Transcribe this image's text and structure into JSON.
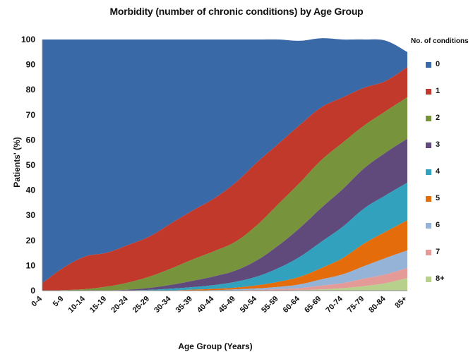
{
  "chart_data": {
    "type": "area",
    "title": "Morbidity (number of chronic conditions) by Age Group",
    "xlabel": "Age Group (Years)",
    "ylabel": "Patients' (%)",
    "ylim": [
      0,
      100
    ],
    "yticks": [
      0,
      10,
      20,
      30,
      40,
      50,
      60,
      70,
      80,
      90,
      100
    ],
    "legend_title": "No. of conditions",
    "legend_position": "right",
    "grid": false,
    "categories": [
      "0-4",
      "5-9",
      "10-14",
      "15-19",
      "20-24",
      "25-29",
      "30-34",
      "35-39",
      "40-44",
      "45-49",
      "50-54",
      "55-59",
      "60-64",
      "65-69",
      "70-74",
      "75-79",
      "80-84",
      "85+"
    ],
    "series": [
      {
        "name": "8+",
        "color": "#B7D08C",
        "values": [
          0,
          0,
          0,
          0,
          0,
          0,
          0,
          0,
          0,
          0,
          0,
          0.1,
          0.2,
          0.5,
          1,
          1.8,
          3,
          5
        ]
      },
      {
        "name": "7",
        "color": "#E49A96",
        "values": [
          0,
          0,
          0,
          0,
          0,
          0,
          0,
          0,
          0,
          0.1,
          0.3,
          0.5,
          0.8,
          1.5,
          2,
          3,
          3.5,
          4
        ]
      },
      {
        "name": "6",
        "color": "#95B3D7",
        "values": [
          0,
          0,
          0,
          0,
          0,
          0,
          0,
          0.1,
          0.2,
          0.4,
          0.6,
          0.9,
          1.5,
          2.5,
          3.5,
          5,
          6.5,
          7
        ]
      },
      {
        "name": "5",
        "color": "#E46C0A",
        "values": [
          0,
          0,
          0,
          0,
          0,
          0,
          0.1,
          0.3,
          0.5,
          0.7,
          1.2,
          2,
          3,
          4.5,
          6.5,
          9,
          10.5,
          12
        ]
      },
      {
        "name": "4",
        "color": "#31A1BD",
        "values": [
          0,
          0,
          0,
          0,
          0.1,
          0.3,
          0.7,
          1,
          1.5,
          2.3,
          3.5,
          5.5,
          8,
          10.5,
          12.5,
          14,
          14.5,
          15
        ]
      },
      {
        "name": "3",
        "color": "#604A7B",
        "values": [
          0,
          0,
          0,
          0.1,
          0.3,
          0.8,
          1.5,
          2.5,
          3.5,
          4.5,
          6.5,
          9,
          11.5,
          13.5,
          15,
          16,
          17,
          17.5
        ]
      },
      {
        "name": "2",
        "color": "#77933C",
        "values": [
          0,
          0.2,
          0.6,
          1.5,
          2.8,
          4.5,
          6.5,
          8.5,
          10,
          11.5,
          14,
          16.5,
          18,
          19,
          18.5,
          17,
          16.5,
          16.5
        ]
      },
      {
        "name": "1",
        "color": "#C0392B",
        "values": [
          3,
          9,
          13,
          13.5,
          15,
          16,
          18,
          19.5,
          21,
          23.5,
          25,
          24,
          23,
          21,
          18,
          15,
          12,
          12
        ]
      },
      {
        "name": "0",
        "color": "#3A69A8",
        "values": [
          97,
          90.8,
          86.4,
          84.9,
          81.8,
          78.4,
          73.2,
          68.1,
          63.3,
          57,
          48.9,
          41.5,
          33.5,
          27.5,
          23,
          19.2,
          16,
          6
        ]
      }
    ]
  }
}
